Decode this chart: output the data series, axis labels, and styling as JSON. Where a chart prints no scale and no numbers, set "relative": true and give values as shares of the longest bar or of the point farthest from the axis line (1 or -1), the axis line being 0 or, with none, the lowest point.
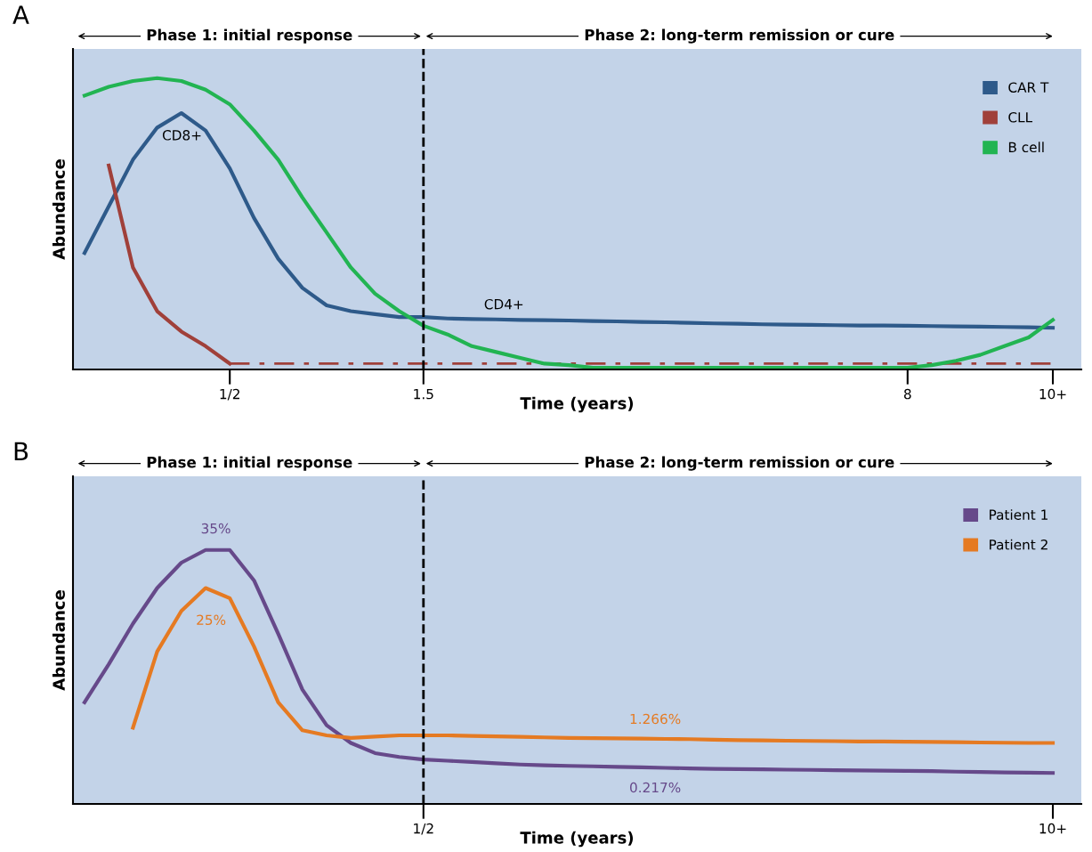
{
  "chart_data": [
    {
      "type": "line",
      "title": "A",
      "xlabel": "Time (years)",
      "ylabel": "Abundance",
      "relative": true,
      "legend": "top right",
      "tick_labels": "x",
      "grid": false,
      "categories": [
        null,
        null,
        null,
        null,
        null,
        null,
        "1/2",
        null,
        null,
        null,
        null,
        null,
        null,
        null,
        "1.5",
        null,
        null,
        null,
        null,
        null,
        null,
        null,
        null,
        null,
        null,
        null,
        null,
        null,
        null,
        null,
        null,
        null,
        null,
        null,
        "8",
        null,
        null,
        null,
        null,
        null,
        "10+"
      ],
      "series": [
        {
          "name": "CAR T",
          "color": "#2e5a8a",
          "line_style": "solid",
          "values": [
            0.4,
            0.56,
            0.72,
            0.83,
            0.88,
            0.82,
            0.69,
            0.52,
            0.38,
            0.28,
            0.22,
            0.2,
            0.19,
            0.18,
            0.18,
            0.175,
            0.173,
            0.172,
            0.17,
            0.169,
            0.168,
            0.166,
            0.165,
            0.163,
            0.162,
            0.16,
            0.158,
            0.157,
            0.155,
            0.154,
            0.153,
            0.152,
            0.151,
            0.151,
            0.15,
            0.149,
            0.148,
            0.147,
            0.146,
            0.145,
            0.143
          ]
        },
        {
          "name": "CLL",
          "color": "#a0403a",
          "line_style": "solid",
          "values": [
            null,
            0.7,
            0.35,
            0.2,
            0.13,
            0.08,
            0.02,
            null,
            null,
            null,
            null,
            null,
            null,
            null,
            null,
            null,
            null,
            null,
            null,
            null,
            null,
            null,
            null,
            null,
            null,
            null,
            null,
            null,
            null,
            null,
            null,
            null,
            null,
            null,
            null,
            null,
            null,
            null,
            null,
            null,
            null
          ]
        },
        {
          "color": "#a0403a",
          "line_style": "dashed",
          "values": [
            null,
            null,
            null,
            null,
            null,
            null,
            0.02,
            0.02,
            0.02,
            0.02,
            0.02,
            0.02,
            0.02,
            0.02,
            0.02,
            0.02,
            0.02,
            0.02,
            0.02,
            0.02,
            0.02,
            0.02,
            0.02,
            0.02,
            0.02,
            0.02,
            0.02,
            0.02,
            0.02,
            0.02,
            0.02,
            0.02,
            0.02,
            0.02,
            0.02,
            0.02,
            0.02,
            0.02,
            0.02,
            0.02,
            0.02
          ]
        },
        {
          "name": "B cell",
          "color": "#22b452",
          "line_style": "solid",
          "values": [
            0.94,
            0.97,
            0.99,
            1.0,
            0.99,
            0.96,
            0.91,
            0.82,
            0.72,
            0.59,
            0.47,
            0.35,
            0.26,
            0.2,
            0.15,
            0.12,
            0.08,
            0.06,
            0.04,
            0.02,
            0.015,
            0.006,
            0.006,
            0.006,
            0.006,
            0.006,
            0.006,
            0.006,
            0.006,
            0.006,
            0.006,
            0.006,
            0.006,
            0.006,
            0.006,
            0.015,
            0.03,
            0.05,
            0.08,
            0.11,
            0.17
          ]
        }
      ],
      "ref_lines": [
        {
          "axis": "x",
          "value": "1.5",
          "color": "#000000",
          "line_style": "dashed"
        }
      ],
      "annotations": [
        "Phase 1: initial response",
        "Phase 2: long-term remission or cure",
        "CD8+",
        "CD4+"
      ]
    },
    {
      "type": "line",
      "title": "B",
      "xlabel": "Time (years)",
      "ylabel": "Abundance",
      "relative": true,
      "legend": "top right",
      "tick_labels": "x",
      "grid": false,
      "categories": [
        null,
        null,
        null,
        null,
        null,
        null,
        null,
        null,
        null,
        null,
        null,
        null,
        null,
        null,
        "1/2",
        null,
        null,
        null,
        null,
        null,
        null,
        null,
        null,
        null,
        null,
        null,
        null,
        null,
        null,
        null,
        null,
        null,
        null,
        null,
        null,
        null,
        null,
        null,
        null,
        null,
        "10+"
      ],
      "series": [
        {
          "name": "Patient 1",
          "color": "#66498a",
          "line_style": "solid",
          "values": [
            0.4,
            0.55,
            0.71,
            0.85,
            0.95,
            1.0,
            1.0,
            0.88,
            0.67,
            0.45,
            0.31,
            0.24,
            0.2,
            0.185,
            0.175,
            0.17,
            0.165,
            0.16,
            0.155,
            0.152,
            0.15,
            0.148,
            0.146,
            0.144,
            0.142,
            0.14,
            0.138,
            0.137,
            0.136,
            0.135,
            0.134,
            0.133,
            0.132,
            0.131,
            0.13,
            0.129,
            0.127,
            0.126,
            0.124,
            0.123,
            0.122
          ]
        },
        {
          "name": "Patient 2",
          "color": "#e57a22",
          "line_style": "solid",
          "values": [
            null,
            null,
            0.3,
            0.6,
            0.76,
            0.85,
            0.81,
            0.62,
            0.4,
            0.29,
            0.27,
            0.26,
            0.265,
            0.27,
            0.27,
            0.27,
            0.268,
            0.266,
            0.264,
            0.262,
            0.26,
            0.259,
            0.258,
            0.257,
            0.256,
            0.255,
            0.253,
            0.251,
            0.25,
            0.249,
            0.248,
            0.247,
            0.246,
            0.246,
            0.245,
            0.244,
            0.243,
            0.242,
            0.241,
            0.24,
            0.24
          ]
        }
      ],
      "ref_lines": [
        {
          "axis": "x",
          "value": "1/2",
          "color": "#000000",
          "line_style": "dashed"
        }
      ],
      "annotations": [
        "Phase 1: initial response",
        "Phase 2: long-term remission or cure",
        "35%",
        "25%",
        "1.266%",
        "0.217%"
      ]
    }
  ]
}
